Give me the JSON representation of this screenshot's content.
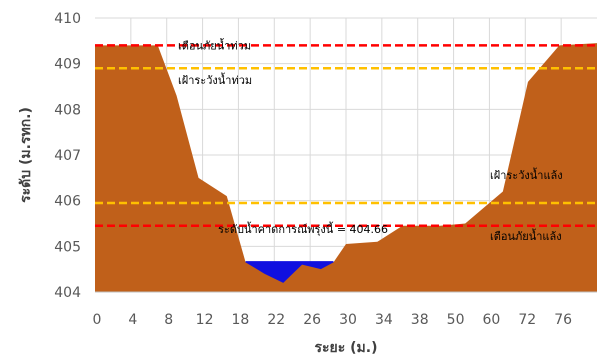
{
  "chart_data": {
    "type": "area",
    "xlabel": "ระยะ (ม.)",
    "ylabel": "ระดับ (ม.รทก.)",
    "ylim": [
      404,
      410
    ],
    "xlim": [
      0,
      80
    ],
    "grid": true,
    "x_ticks": [
      "0",
      "4",
      "8",
      "12",
      "18",
      "22",
      "26",
      "30",
      "34",
      "38",
      "50",
      "60",
      "72",
      "76"
    ],
    "y_ticks": [
      404,
      405,
      406,
      407,
      408,
      409,
      410
    ],
    "colors": {
      "ground": "#c0601a",
      "water": "#1010e0",
      "red_line": "#ff0000",
      "yellow_line": "#ffc000"
    },
    "ground_profile": [
      {
        "x": 0,
        "y": 409.4
      },
      {
        "x": 10,
        "y": 409.4
      },
      {
        "x": 13,
        "y": 408.3
      },
      {
        "x": 16.5,
        "y": 406.5
      },
      {
        "x": 21,
        "y": 406.1
      },
      {
        "x": 24,
        "y": 404.65
      },
      {
        "x": 27,
        "y": 404.4
      },
      {
        "x": 30,
        "y": 404.2
      },
      {
        "x": 33,
        "y": 404.6
      },
      {
        "x": 36,
        "y": 404.5
      },
      {
        "x": 38,
        "y": 404.65
      },
      {
        "x": 40,
        "y": 405.05
      },
      {
        "x": 45,
        "y": 405.1
      },
      {
        "x": 49,
        "y": 405.45
      },
      {
        "x": 55,
        "y": 405.45
      },
      {
        "x": 59,
        "y": 405.5
      },
      {
        "x": 65,
        "y": 406.2
      },
      {
        "x": 69,
        "y": 408.6
      },
      {
        "x": 74,
        "y": 409.4
      },
      {
        "x": 80,
        "y": 409.45
      }
    ],
    "water_level": 404.66,
    "water_range": [
      24,
      38
    ],
    "reference_lines": [
      {
        "label": "เตือนภัยน้ำท่วม",
        "y": 409.4,
        "color": "red"
      },
      {
        "label": "เฝ้าระวังน้ำท่วม",
        "y": 408.9,
        "color": "yellow"
      },
      {
        "label": "เฝ้าระวังน้ำแล้ง",
        "y": 405.95,
        "color": "yellow"
      },
      {
        "label": "เตือนภัยน้ำแล้ง",
        "y": 405.45,
        "color": "red"
      }
    ],
    "water_label": "ระดับน้ำคาดการณ์พรุ่งนี้ = 404.66"
  }
}
